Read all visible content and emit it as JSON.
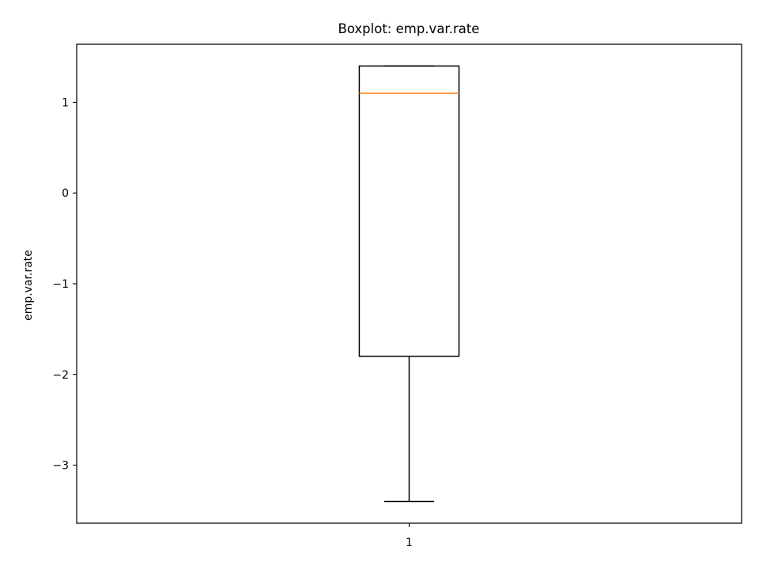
{
  "chart_data": {
    "type": "boxplot",
    "title": "Boxplot: emp.var.rate",
    "xlabel": "",
    "ylabel": "emp.var.rate",
    "categories": [
      "1"
    ],
    "boxes": [
      {
        "category": "1",
        "whisker_low": -3.4,
        "q1": -1.8,
        "median": 1.1,
        "q3": 1.4,
        "whisker_high": 1.4
      }
    ],
    "ylim": [
      -3.64,
      1.64
    ],
    "yticks": [
      1,
      0,
      -1,
      -2,
      -3
    ],
    "ytick_labels": [
      "1",
      "0",
      "−1",
      "−2",
      "−3"
    ],
    "grid": false,
    "colors": {
      "box": "#000000",
      "median": "#ff7f0e",
      "whisker": "#000000"
    }
  }
}
